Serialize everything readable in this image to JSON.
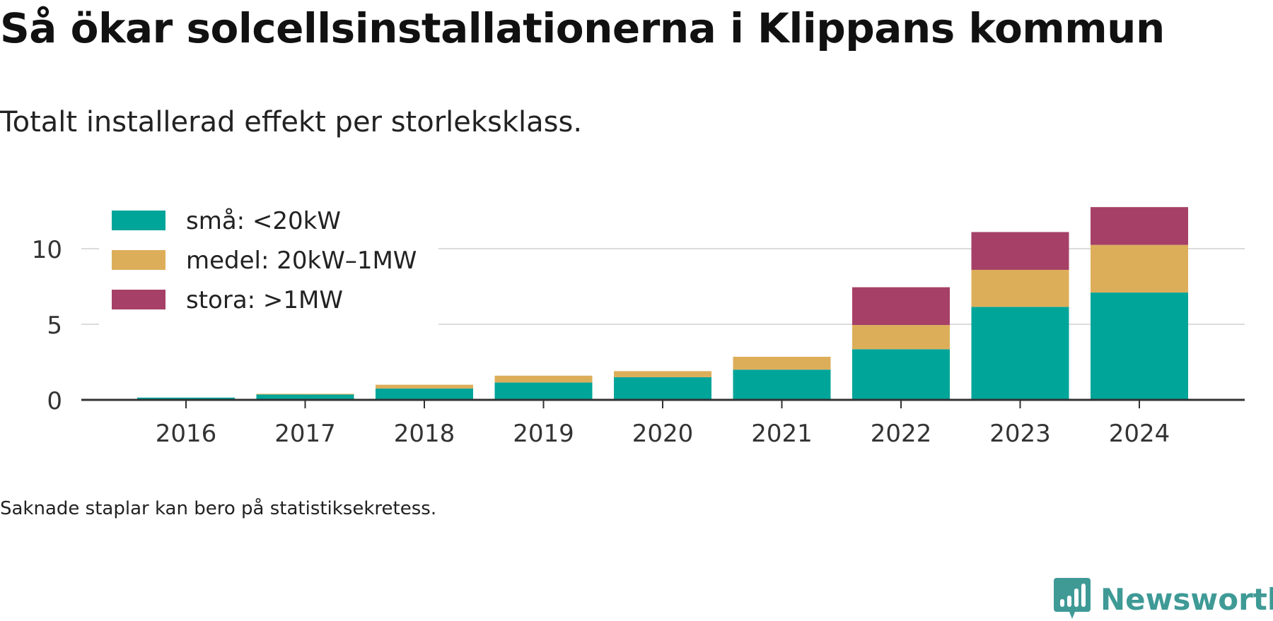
{
  "header": {
    "title": "Så ökar solcellsinstallationerna i Klippans kommun",
    "subtitle": "Totalt installerad effekt per storleksklass."
  },
  "footnote": "Saknade staplar kan bero på statistiksekretess.",
  "brand": {
    "name": "Newsworthy",
    "icon": "newsworthy-logo-icon",
    "color": "#3f9a96"
  },
  "chart_data": {
    "type": "bar",
    "stacked": true,
    "categories": [
      "2016",
      "2017",
      "2018",
      "2019",
      "2020",
      "2021",
      "2022",
      "2023",
      "2024"
    ],
    "series": [
      {
        "name": "små: <20kW",
        "color": "#00a59a",
        "values": [
          0.15,
          0.35,
          0.75,
          1.15,
          1.5,
          2.0,
          3.35,
          6.15,
          7.1
        ]
      },
      {
        "name": "medel: 20kW–1MW",
        "color": "#ddae5a",
        "values": [
          0.0,
          0.05,
          0.25,
          0.45,
          0.4,
          0.85,
          1.6,
          2.45,
          3.15
        ]
      },
      {
        "name": "stora: >1MW",
        "color": "#a64067",
        "values": [
          0.0,
          0.0,
          0.0,
          0.0,
          0.0,
          0.0,
          2.5,
          2.5,
          2.5
        ]
      }
    ],
    "yticks": [
      0,
      5,
      10
    ],
    "ylim": [
      0,
      13
    ],
    "xlabel": "",
    "ylabel": "",
    "grid": true,
    "legend_position": "top-left"
  }
}
